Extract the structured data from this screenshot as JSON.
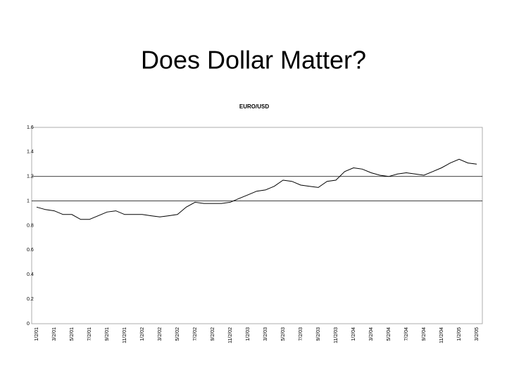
{
  "title": "Does Dollar Matter?",
  "chart_data": {
    "type": "line",
    "title": "EURO/USD",
    "categories": [
      "1/2/01",
      null,
      "3/2/01",
      null,
      "5/2/01",
      null,
      "7/2/01",
      null,
      "9/2/01",
      null,
      "11/2/01",
      null,
      "1/2/02",
      null,
      "3/2/02",
      null,
      "5/2/02",
      null,
      "7/2/02",
      null,
      "9/2/02",
      null,
      "11/2/02",
      null,
      "1/2/03",
      null,
      "3/2/03",
      null,
      "5/2/03",
      null,
      "7/2/03",
      null,
      "9/2/03",
      null,
      "11/2/03",
      null,
      "1/2/04",
      null,
      "3/2/04",
      null,
      "5/2/04",
      null,
      "7/2/04",
      null,
      "9/2/04",
      null,
      "11/2/04",
      null,
      "1/2/05",
      null,
      "3/2/05"
    ],
    "series": [
      {
        "color": "#000000",
        "values": [
          0.95,
          0.93,
          0.92,
          0.89,
          0.89,
          0.85,
          0.85,
          0.88,
          0.91,
          0.92,
          0.89,
          0.89,
          0.89,
          0.88,
          0.87,
          0.88,
          0.89,
          0.95,
          0.99,
          0.98,
          0.98,
          0.98,
          0.99,
          1.02,
          1.05,
          1.08,
          1.09,
          1.12,
          1.17,
          1.16,
          1.13,
          1.12,
          1.11,
          1.16,
          1.17,
          1.24,
          1.27,
          1.26,
          1.23,
          1.21,
          1.2,
          1.22,
          1.23,
          1.22,
          1.21,
          1.24,
          1.27,
          1.31,
          1.34,
          1.31,
          1.3
        ]
      }
    ],
    "ylim": [
      0,
      1.6
    ],
    "yticks": [
      0,
      0.2,
      0.4,
      0.6,
      0.8,
      1,
      1.2,
      1.4,
      1.6
    ],
    "gridlines": [
      1,
      1.2
    ]
  }
}
